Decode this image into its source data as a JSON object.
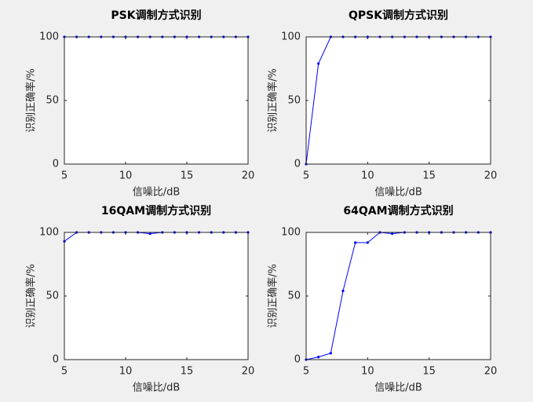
{
  "chart_data": [
    {
      "type": "line",
      "title": "PSK调制方式识别",
      "xlabel": "信噪比/dB",
      "ylabel": "识别正确率/%",
      "x": [
        5,
        6,
        7,
        8,
        9,
        10,
        11,
        12,
        13,
        14,
        15,
        16,
        17,
        18,
        19,
        20
      ],
      "series": [
        {
          "color": "#0000ff",
          "values": [
            100,
            100,
            100,
            100,
            100,
            100,
            100,
            100,
            100,
            100,
            100,
            100,
            100,
            100,
            100,
            100
          ]
        }
      ],
      "xlim": [
        5,
        20
      ],
      "xticks": [
        5,
        10,
        15,
        20
      ],
      "ylim": [
        0,
        100
      ],
      "yticks": [
        0,
        50,
        100
      ],
      "grid": false
    },
    {
      "type": "line",
      "title": "QPSK调制方式识别",
      "xlabel": "信噪比/dB",
      "ylabel": "识别正确率/%",
      "x": [
        5,
        6,
        7,
        8,
        9,
        10,
        11,
        12,
        13,
        14,
        15,
        16,
        17,
        18,
        19,
        20
      ],
      "series": [
        {
          "color": "#0000ff",
          "values": [
            0,
            79,
            100,
            100,
            100,
            100,
            100,
            100,
            100,
            100,
            100,
            100,
            100,
            100,
            100,
            100
          ]
        }
      ],
      "xlim": [
        5,
        20
      ],
      "xticks": [
        5,
        10,
        15,
        20
      ],
      "ylim": [
        0,
        100
      ],
      "yticks": [
        0,
        50,
        100
      ],
      "grid": false
    },
    {
      "type": "line",
      "title": "16QAM调制方式识别",
      "xlabel": "信噪比/dB",
      "ylabel": "识别正确率/%",
      "x": [
        5,
        6,
        7,
        8,
        9,
        10,
        11,
        12,
        13,
        14,
        15,
        16,
        17,
        18,
        19,
        20
      ],
      "series": [
        {
          "color": "#0000ff",
          "values": [
            93,
            100,
            100,
            100,
            100,
            100,
            100,
            99,
            100,
            100,
            100,
            100,
            100,
            100,
            100,
            100
          ]
        }
      ],
      "xlim": [
        5,
        20
      ],
      "xticks": [
        5,
        10,
        15,
        20
      ],
      "ylim": [
        0,
        100
      ],
      "yticks": [
        0,
        50,
        100
      ],
      "grid": false
    },
    {
      "type": "line",
      "title": "64QAM调制方式识别",
      "xlabel": "信噪比/dB",
      "ylabel": "识别正确率/%",
      "x": [
        5,
        6,
        7,
        8,
        9,
        10,
        11,
        12,
        13,
        14,
        15,
        16,
        17,
        18,
        19,
        20
      ],
      "series": [
        {
          "color": "#0000ff",
          "values": [
            0,
            2,
            5,
            54,
            92,
            92,
            100,
            99,
            100,
            100,
            100,
            100,
            100,
            100,
            100,
            100
          ]
        }
      ],
      "xlim": [
        5,
        20
      ],
      "xticks": [
        5,
        10,
        15,
        20
      ],
      "ylim": [
        0,
        100
      ],
      "yticks": [
        0,
        50,
        100
      ],
      "grid": false
    }
  ]
}
